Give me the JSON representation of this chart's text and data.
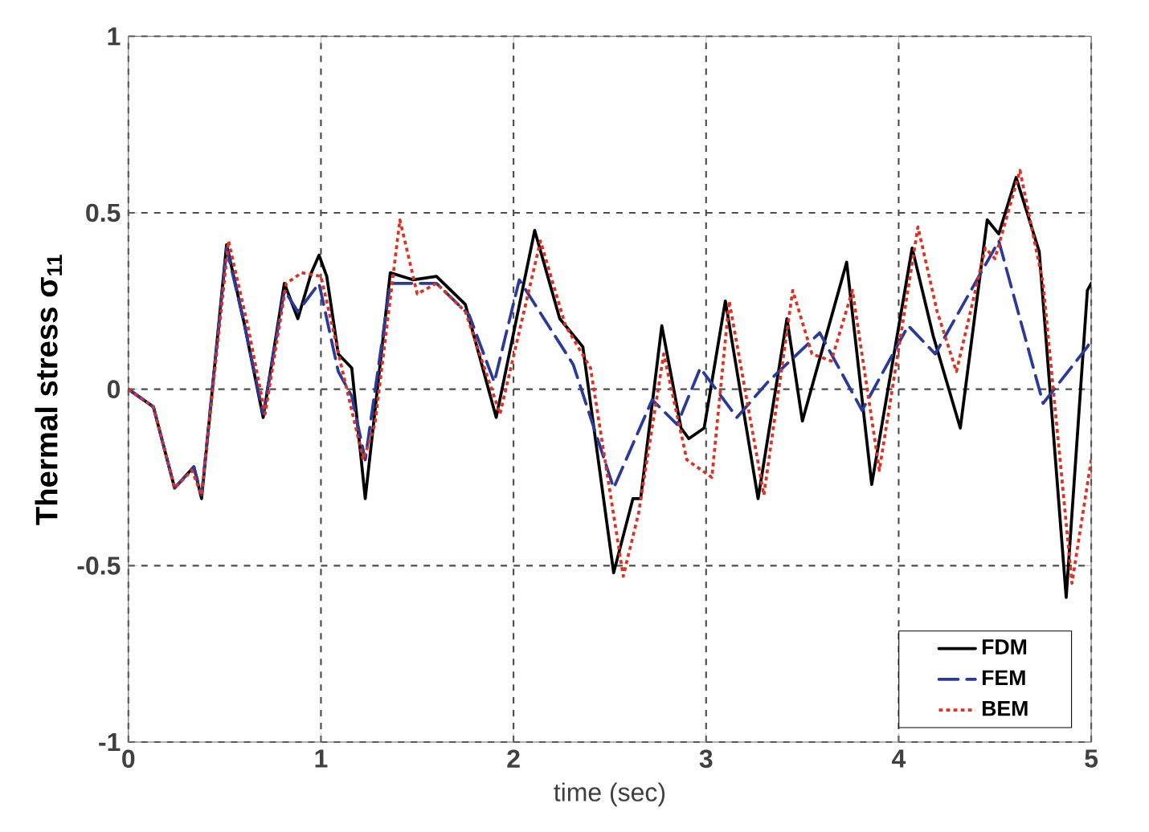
{
  "chart_data": {
    "type": "line",
    "xlabel": "time (sec)",
    "ylabel": "Thermal stress σ$_{11}$",
    "xlim": [
      0,
      5
    ],
    "ylim": [
      -1,
      1
    ],
    "xticks": [
      0,
      1,
      2,
      3,
      4,
      5
    ],
    "yticks": [
      -1,
      -0.5,
      0,
      0.5,
      1
    ],
    "grid": true,
    "legend": "bottom right",
    "marker": "none",
    "series": [
      {
        "name": "FDM",
        "color": "#000000",
        "line_style": "solid",
        "x": [
          0,
          0.13,
          0.24,
          0.34,
          0.38,
          0.51,
          0.6,
          0.7,
          0.81,
          0.88,
          0.95,
          0.99,
          1.03,
          1.09,
          1.16,
          1.23,
          1.36,
          1.48,
          1.6,
          1.75,
          1.91,
          2.11,
          2.24,
          2.36,
          2.52,
          2.62,
          2.66,
          2.77,
          2.87,
          2.91,
          2.99,
          3.1,
          3.27,
          3.42,
          3.5,
          3.73,
          3.86,
          4.07,
          4.18,
          4.32,
          4.46,
          4.52,
          4.61,
          4.73,
          4.87,
          4.98,
          5
        ],
        "values": [
          0,
          -0.05,
          -0.28,
          -0.22,
          -0.31,
          0.41,
          0.19,
          -0.08,
          0.3,
          0.2,
          0.33,
          0.38,
          0.32,
          0.1,
          0.06,
          -0.31,
          0.33,
          0.31,
          0.32,
          0.24,
          -0.08,
          0.45,
          0.2,
          0.12,
          -0.52,
          -0.31,
          -0.31,
          0.18,
          -0.11,
          -0.14,
          -0.11,
          0.25,
          -0.31,
          0.2,
          -0.09,
          0.36,
          -0.27,
          0.4,
          0.15,
          -0.11,
          0.48,
          0.44,
          0.6,
          0.39,
          -0.59,
          0.28,
          0.3
        ]
      },
      {
        "name": "FEM",
        "color": "#2a3a9a",
        "line_style": "dashed",
        "x": [
          0,
          0.13,
          0.24,
          0.34,
          0.38,
          0.51,
          0.6,
          0.7,
          0.81,
          0.88,
          0.99,
          1.09,
          1.16,
          1.23,
          1.36,
          1.48,
          1.6,
          1.77,
          1.9,
          2.03,
          2.31,
          2.52,
          2.72,
          2.85,
          2.97,
          3.16,
          3.32,
          3.59,
          3.81,
          4.05,
          4.19,
          4.52,
          4.75,
          4.98,
          5
        ],
        "values": [
          0,
          -0.05,
          -0.28,
          -0.22,
          -0.3,
          0.4,
          0.19,
          -0.07,
          0.28,
          0.22,
          0.3,
          0.05,
          -0.02,
          -0.2,
          0.3,
          0.3,
          0.3,
          0.21,
          0.02,
          0.31,
          0.07,
          -0.28,
          -0.03,
          -0.1,
          0.06,
          -0.08,
          0.02,
          0.16,
          -0.06,
          0.18,
          0.1,
          0.42,
          -0.04,
          0.12,
          0.14
        ]
      },
      {
        "name": "BEM",
        "color": "#e03020",
        "line_style": "dotted",
        "x": [
          0,
          0.13,
          0.24,
          0.33,
          0.38,
          0.52,
          0.62,
          0.71,
          0.82,
          0.9,
          1.0,
          1.1,
          1.22,
          1.28,
          1.41,
          1.5,
          1.6,
          1.75,
          1.93,
          2.14,
          2.27,
          2.4,
          2.57,
          2.65,
          2.78,
          2.9,
          3.03,
          3.12,
          3.3,
          3.45,
          3.55,
          3.65,
          3.76,
          3.9,
          4.1,
          4.2,
          4.3,
          4.45,
          4.5,
          4.63,
          4.75,
          4.9,
          5
        ],
        "values": [
          0,
          -0.05,
          -0.28,
          -0.23,
          -0.3,
          0.42,
          0.18,
          -0.07,
          0.3,
          0.33,
          0.32,
          0.08,
          -0.2,
          -0.1,
          0.48,
          0.27,
          0.3,
          0.22,
          -0.07,
          0.42,
          0.18,
          0.06,
          -0.53,
          -0.35,
          0.1,
          -0.2,
          -0.25,
          0.25,
          -0.3,
          0.28,
          0.1,
          0.08,
          0.28,
          -0.23,
          0.46,
          0.22,
          0.05,
          0.4,
          0.37,
          0.62,
          0.3,
          -0.55,
          -0.2
        ]
      }
    ]
  }
}
